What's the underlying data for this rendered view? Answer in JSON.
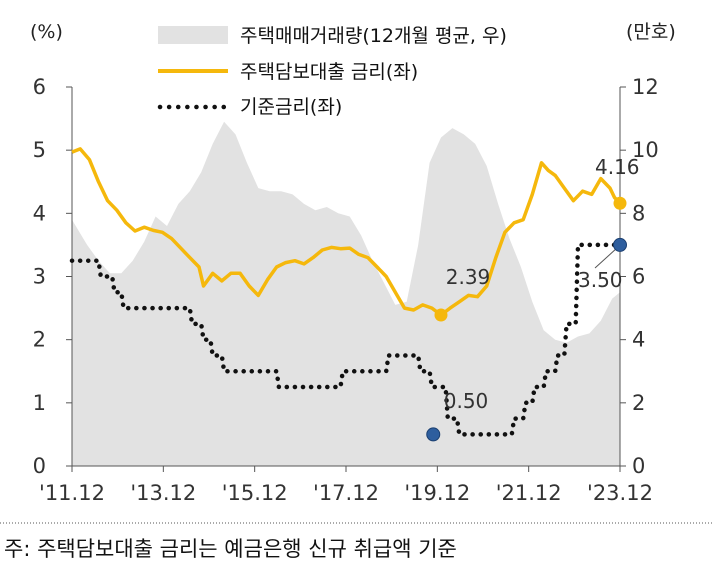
{
  "chart_data": {
    "type": "line",
    "left_axis_unit": "(%)",
    "right_axis_unit": "(만호)",
    "left_ylim": [
      0,
      6
    ],
    "right_ylim": [
      0,
      12
    ],
    "left_ticks": [
      "0",
      "1",
      "2",
      "3",
      "4",
      "5",
      "6"
    ],
    "right_ticks": [
      "0",
      "2",
      "4",
      "6",
      "8",
      "10",
      "12"
    ],
    "x_ticks": [
      "'11.12",
      "'13.12",
      "'15.12",
      "'17.12",
      "'19.12",
      "'21.12",
      "'23.12"
    ],
    "legend_position": "top-center",
    "series": [
      {
        "name": "주택매매거래량(12개월 평균, 우)",
        "kind": "area",
        "axis": "right",
        "color": "#e2e2e2",
        "x": [
          2011.92,
          2012.25,
          2012.5,
          2012.75,
          2013.0,
          2013.25,
          2013.5,
          2013.75,
          2014.0,
          2014.25,
          2014.5,
          2014.75,
          2015.0,
          2015.25,
          2015.5,
          2015.75,
          2016.0,
          2016.25,
          2016.5,
          2016.75,
          2017.0,
          2017.25,
          2017.5,
          2017.75,
          2018.0,
          2018.25,
          2018.5,
          2018.75,
          2019.0,
          2019.25,
          2019.5,
          2019.75,
          2020.0,
          2020.25,
          2020.5,
          2020.75,
          2021.0,
          2021.25,
          2021.5,
          2021.75,
          2022.0,
          2022.25,
          2022.5,
          2022.75,
          2023.0,
          2023.25,
          2023.5,
          2023.75,
          2023.92
        ],
        "values": [
          7.8,
          7.0,
          6.5,
          6.1,
          6.1,
          6.5,
          7.1,
          7.9,
          7.6,
          8.3,
          8.7,
          9.3,
          10.2,
          10.9,
          10.5,
          9.6,
          8.8,
          8.7,
          8.7,
          8.6,
          8.3,
          8.1,
          8.2,
          8.0,
          7.9,
          7.3,
          6.5,
          5.8,
          5.1,
          5.2,
          7.0,
          9.6,
          10.4,
          10.7,
          10.5,
          10.2,
          9.5,
          8.3,
          7.2,
          6.3,
          5.2,
          4.3,
          4.0,
          3.9,
          4.1,
          4.2,
          4.6,
          5.3,
          5.5
        ]
      },
      {
        "name": "주택담보대출 금리(좌)",
        "kind": "line",
        "axis": "left",
        "color": "#f5b80c",
        "x": [
          2011.92,
          2012.1,
          2012.3,
          2012.5,
          2012.7,
          2012.9,
          2013.1,
          2013.3,
          2013.5,
          2013.7,
          2013.9,
          2014.1,
          2014.3,
          2014.5,
          2014.7,
          2014.8,
          2015.0,
          2015.2,
          2015.4,
          2015.6,
          2015.8,
          2016.0,
          2016.2,
          2016.4,
          2016.6,
          2016.8,
          2017.0,
          2017.2,
          2017.4,
          2017.6,
          2017.8,
          2018.0,
          2018.2,
          2018.4,
          2018.6,
          2018.8,
          2019.0,
          2019.2,
          2019.4,
          2019.6,
          2019.8,
          2020.0,
          2020.2,
          2020.4,
          2020.6,
          2020.8,
          2021.0,
          2021.2,
          2021.4,
          2021.6,
          2021.8,
          2022.0,
          2022.2,
          2022.35,
          2022.5,
          2022.7,
          2022.9,
          2023.1,
          2023.3,
          2023.5,
          2023.7,
          2023.8,
          2023.92
        ],
        "values": [
          4.97,
          5.02,
          4.85,
          4.5,
          4.2,
          4.05,
          3.85,
          3.72,
          3.78,
          3.73,
          3.7,
          3.6,
          3.45,
          3.3,
          3.15,
          2.85,
          3.05,
          2.93,
          3.05,
          3.05,
          2.85,
          2.7,
          2.95,
          3.15,
          3.22,
          3.25,
          3.2,
          3.3,
          3.42,
          3.46,
          3.44,
          3.45,
          3.35,
          3.3,
          3.15,
          3.0,
          2.75,
          2.5,
          2.47,
          2.55,
          2.5,
          2.39,
          2.5,
          2.6,
          2.7,
          2.68,
          2.85,
          3.3,
          3.7,
          3.85,
          3.9,
          4.3,
          4.8,
          4.68,
          4.6,
          4.4,
          4.2,
          4.35,
          4.3,
          4.55,
          4.4,
          4.25,
          4.16
        ]
      },
      {
        "name": "기준금리(좌)",
        "kind": "dotted-line",
        "axis": "left",
        "color": "#111111",
        "x": [
          2011.92,
          2012.5,
          2012.55,
          2012.8,
          2012.85,
          2013.0,
          2013.05,
          2014.5,
          2014.55,
          2014.75,
          2014.8,
          2014.95,
          2015.0,
          2015.2,
          2015.25,
          2016.4,
          2016.45,
          2017.8,
          2017.85,
          2018.8,
          2018.85,
          2019.5,
          2019.55,
          2019.75,
          2019.8,
          2020.1,
          2020.15,
          2020.35,
          2020.4,
          2021.55,
          2021.6,
          2021.8,
          2021.85,
          2022.0,
          2022.05,
          2022.25,
          2022.3,
          2022.5,
          2022.55,
          2022.7,
          2022.75,
          2022.95,
          2023.0,
          2023.92
        ],
        "values": [
          3.25,
          3.25,
          3.0,
          3.0,
          2.75,
          2.75,
          2.5,
          2.5,
          2.25,
          2.25,
          2.0,
          2.0,
          1.75,
          1.75,
          1.5,
          1.5,
          1.25,
          1.25,
          1.5,
          1.5,
          1.75,
          1.75,
          1.5,
          1.5,
          1.25,
          1.25,
          0.75,
          0.75,
          0.5,
          0.5,
          0.75,
          0.75,
          1.0,
          1.0,
          1.25,
          1.25,
          1.5,
          1.5,
          1.75,
          1.75,
          2.25,
          2.25,
          3.5,
          3.5
        ]
      }
    ],
    "annotations": [
      {
        "text": "4.16",
        "series": "주택담보대출 금리(좌)",
        "x": 2023.92,
        "y": 4.16
      },
      {
        "text": "2.39",
        "series": "주택담보대출 금리(좌)",
        "x": 2020.0,
        "y": 2.39
      },
      {
        "text": "3.50",
        "series": "기준금리(좌)",
        "x": 2023.92,
        "y": 3.5
      },
      {
        "text": "0.50",
        "series": "기준금리(좌)",
        "x": 2020.4,
        "y": 0.5
      }
    ]
  },
  "footnote": "주: 주택담보대출 금리는 예금은행 신규 취급액 기준"
}
